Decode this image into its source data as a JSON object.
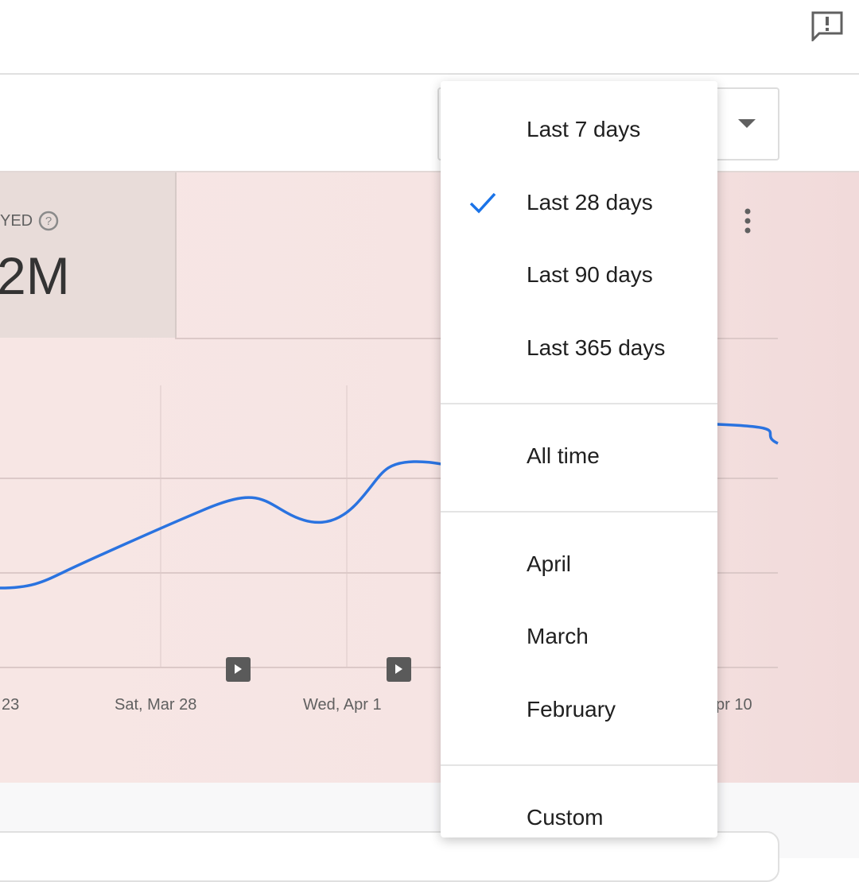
{
  "metric": {
    "label": "YED",
    "value": "2M"
  },
  "chart": {
    "x_labels": [
      "23",
      "Sat, Mar 28",
      "Wed, Apr 1",
      "pr 10"
    ]
  },
  "menu": {
    "groups": [
      [
        "Last 7 days",
        "Last 28 days",
        "Last 90 days",
        "Last 365 days"
      ],
      [
        "All time"
      ],
      [
        "April",
        "March",
        "February"
      ],
      [
        "Custom"
      ]
    ],
    "selected": "Last 28 days"
  }
}
